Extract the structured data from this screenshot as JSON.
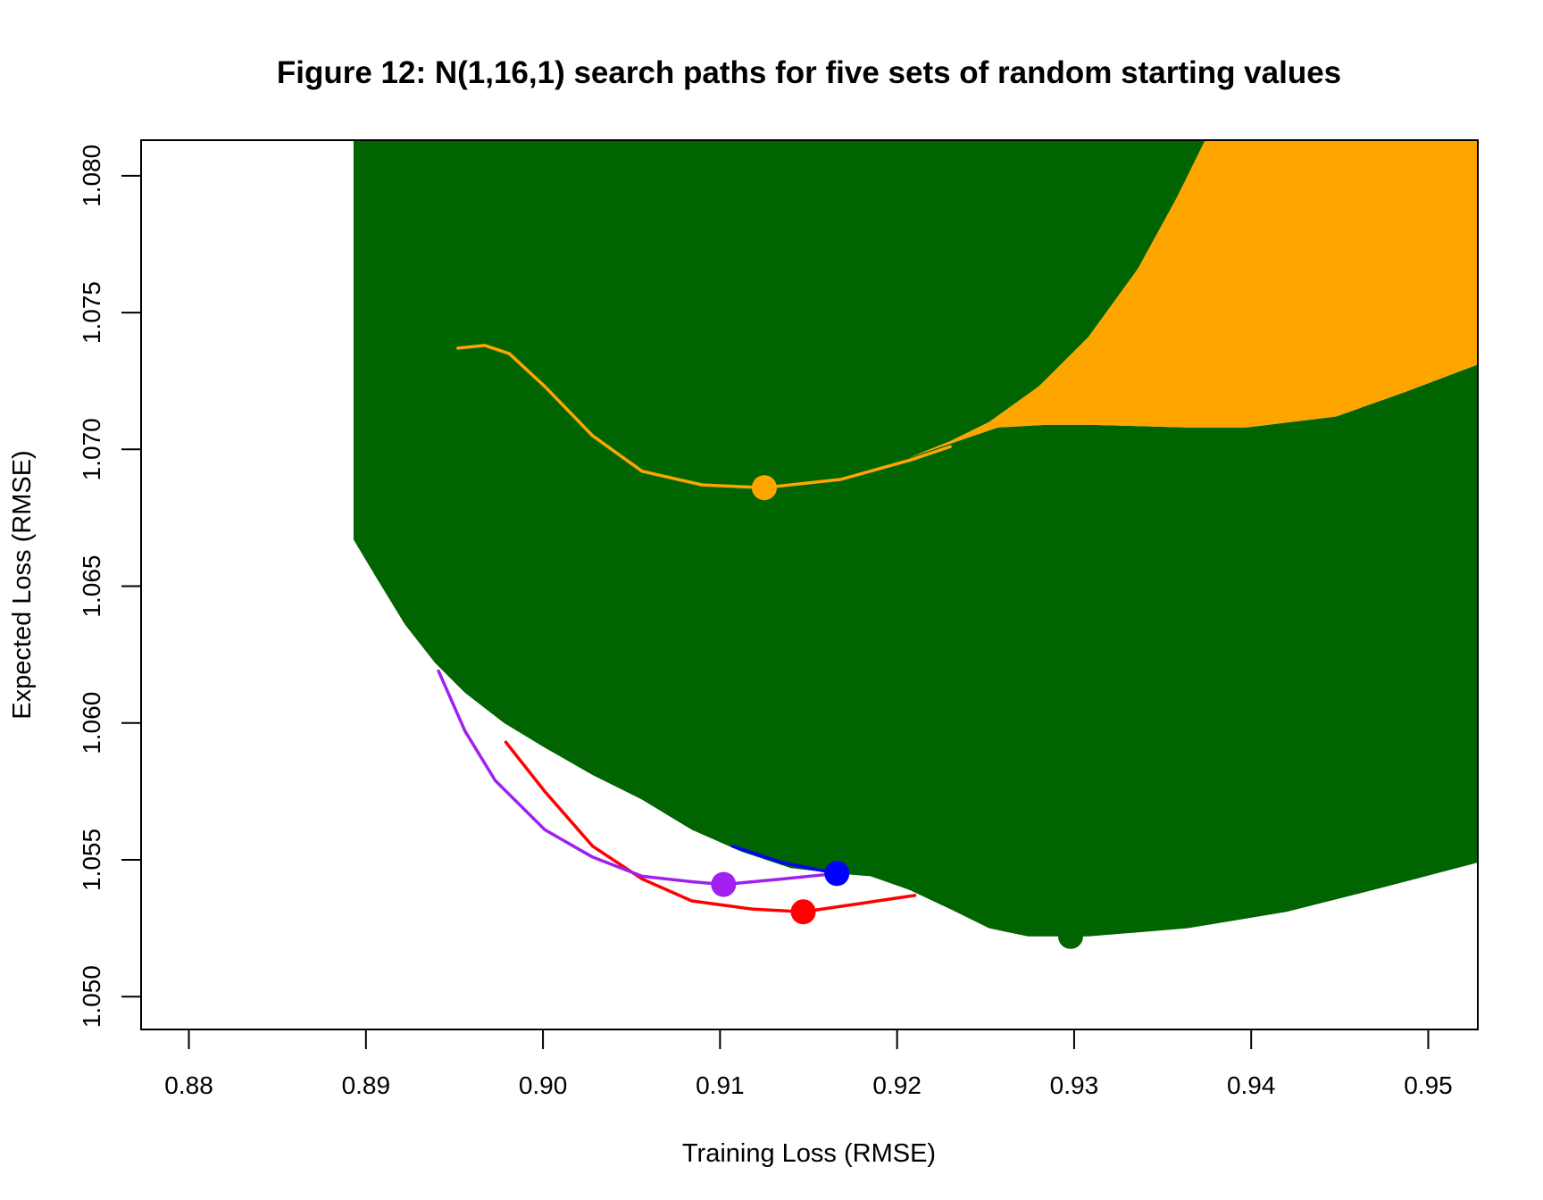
{
  "chart_data": {
    "type": "line",
    "title": "Figure 12: N(1,16,1) search paths for five sets of random starting values",
    "xlabel": "Training Loss (RMSE)",
    "ylabel": "Expected Loss (RMSE)",
    "xlim": [
      0.8773,
      0.9528
    ],
    "ylim": [
      1.0488,
      1.0813
    ],
    "xticks": [
      "0.88",
      "0.89",
      "0.90",
      "0.91",
      "0.92",
      "0.93",
      "0.94",
      "0.95"
    ],
    "yticks": [
      "1.050",
      "1.055",
      "1.060",
      "1.065",
      "1.070",
      "1.075",
      "1.080"
    ],
    "grid": false,
    "colors": {
      "green": "#006400",
      "orange": "#FFA500",
      "blue": "#0000FF",
      "red": "#FF0000",
      "purple": "#A020F0"
    },
    "regions": [
      {
        "color": "green",
        "points": [
          [
            0.8893,
            1.0813
          ],
          [
            0.9374,
            1.0813
          ],
          [
            0.9358,
            1.0792
          ],
          [
            0.9336,
            1.0766
          ],
          [
            0.9308,
            1.0741
          ],
          [
            0.928,
            1.0723
          ],
          [
            0.9252,
            1.071
          ],
          [
            0.923,
            1.0703
          ],
          [
            0.9207,
            1.0697
          ],
          [
            0.9257,
            1.0708
          ],
          [
            0.9285,
            1.0709
          ],
          [
            0.9308,
            1.0709
          ],
          [
            0.9364,
            1.0708
          ],
          [
            0.9397,
            1.0708
          ],
          [
            0.9448,
            1.0712
          ],
          [
            0.9487,
            1.0721
          ],
          [
            0.9528,
            1.0731
          ],
          [
            0.9528,
            1.0549
          ],
          [
            0.9475,
            1.054
          ],
          [
            0.942,
            1.0531
          ],
          [
            0.9364,
            1.0525
          ],
          [
            0.9308,
            1.0522
          ],
          [
            0.9274,
            1.0522
          ],
          [
            0.9252,
            1.0525
          ],
          [
            0.923,
            1.0532
          ],
          [
            0.9207,
            1.0539
          ],
          [
            0.9185,
            1.0544
          ],
          [
            0.9166,
            1.0545
          ],
          [
            0.914,
            1.0547
          ],
          [
            0.9112,
            1.0553
          ],
          [
            0.9084,
            1.0561
          ],
          [
            0.9056,
            1.0572
          ],
          [
            0.9028,
            1.0581
          ],
          [
            0.9001,
            1.0591
          ],
          [
            0.8978,
            1.06
          ],
          [
            0.8956,
            1.0611
          ],
          [
            0.8939,
            1.0622
          ],
          [
            0.8922,
            1.0636
          ],
          [
            0.8906,
            1.0653
          ],
          [
            0.8893,
            1.0667
          ]
        ]
      },
      {
        "color": "orange",
        "points": [
          [
            0.9207,
            1.0697
          ],
          [
            0.923,
            1.0703
          ],
          [
            0.9252,
            1.071
          ],
          [
            0.928,
            1.0723
          ],
          [
            0.9308,
            1.0741
          ],
          [
            0.9336,
            1.0766
          ],
          [
            0.9358,
            1.0792
          ],
          [
            0.9374,
            1.0813
          ],
          [
            0.9528,
            1.0813
          ],
          [
            0.9528,
            1.0731
          ],
          [
            0.9487,
            1.0721
          ],
          [
            0.9448,
            1.0712
          ],
          [
            0.9397,
            1.0708
          ],
          [
            0.9364,
            1.0708
          ],
          [
            0.9308,
            1.0709
          ],
          [
            0.9285,
            1.0709
          ],
          [
            0.9257,
            1.0708
          ]
        ]
      }
    ],
    "series": [
      {
        "color": "orange",
        "x": [
          0.8952,
          0.8967,
          0.8981,
          0.9001,
          0.9028,
          0.9056,
          0.909,
          0.9125,
          0.9168,
          0.9207,
          0.923
        ],
        "y": [
          1.0737,
          1.0738,
          1.0735,
          1.0723,
          1.0705,
          1.0692,
          1.0687,
          1.0686,
          1.0689,
          1.0696,
          1.0701
        ],
        "end": [
          0.9125,
          1.0686
        ]
      },
      {
        "color": "green",
        "x": [],
        "y": [],
        "end": [
          0.9298,
          1.0522
        ]
      },
      {
        "color": "blue",
        "x": [
          0.9107,
          0.9135,
          0.9166
        ],
        "y": [
          1.0555,
          1.0549,
          1.0545
        ],
        "end": [
          0.9166,
          1.0545
        ]
      },
      {
        "color": "red",
        "x": [
          0.8979,
          0.9001,
          0.9028,
          0.9056,
          0.9084,
          0.9118,
          0.9147,
          0.9179,
          0.921
        ],
        "y": [
          1.0593,
          1.0575,
          1.0555,
          1.0543,
          1.0535,
          1.0532,
          1.0531,
          1.0534,
          1.0537
        ],
        "end": [
          0.9147,
          1.0531
        ]
      },
      {
        "color": "purple",
        "x": [
          0.8941,
          0.8956,
          0.8973,
          0.9001,
          0.9028,
          0.9056,
          0.9084,
          0.9102,
          0.9135,
          0.9166
        ],
        "y": [
          1.0619,
          1.0597,
          1.0579,
          1.0561,
          1.0551,
          1.0544,
          1.0542,
          1.0541,
          1.0543,
          1.0545
        ],
        "end": [
          0.9102,
          1.0541
        ]
      }
    ]
  }
}
